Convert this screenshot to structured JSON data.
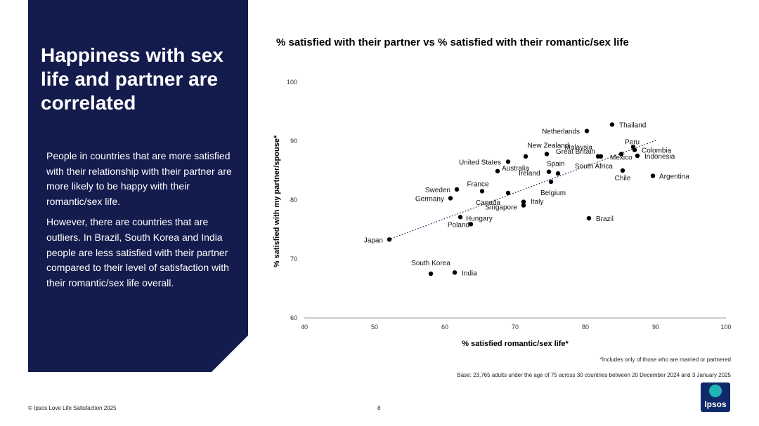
{
  "side": {
    "title": "Happiness with sex life and partner are correlated",
    "paragraph1": "People in countries that are more satisfied with their relationship with their partner are more likely to be happy with their romantic/sex life.",
    "paragraph2": "However, there are countries that are outliers. In Brazil, South Korea and India people are less satisfied with their partner compared to their level of satisfaction with their romantic/sex life overall."
  },
  "footer": {
    "footnote": "*Includes only of those who are married or partnered",
    "base": "Base: 23,765 adults under the age of 75 across 30 countries between 20 December 2024 and 3 January 2025",
    "copyright": "© Ipsos Love Life Satisfaction 2025",
    "page_number": "8",
    "logo_text": "Ipsos"
  },
  "chart_data": {
    "type": "scatter",
    "title": "% satisfied with their partner vs % satisfied with their romantic/sex life",
    "xlabel": "% satisfied romantic/sex life*",
    "ylabel": "% satisfied with my partner/spouse*",
    "xlim": [
      40,
      100
    ],
    "ylim": [
      60,
      100
    ],
    "xticks": [
      "40",
      "50",
      "60",
      "70",
      "80",
      "90",
      "100"
    ],
    "yticks": [
      "60",
      "70",
      "80",
      "90",
      "100"
    ],
    "grid": false,
    "trendline": {
      "style": "dotted",
      "x": [
        52,
        90
      ],
      "y": [
        73.3,
        90.1
      ]
    },
    "points": [
      {
        "label": "Thailand",
        "x": 83.8,
        "y": 92.8
      },
      {
        "label": "Netherlands",
        "x": 80.2,
        "y": 91.7
      },
      {
        "label": "Malaysia",
        "x": 81.8,
        "y": 87.4
      },
      {
        "label": "Great Britain",
        "x": 82.2,
        "y": 87.4
      },
      {
        "label": "New Zealand",
        "x": 74.5,
        "y": 87.8
      },
      {
        "label": "Peru",
        "x": 86.8,
        "y": 89.0
      },
      {
        "label": "Colombia",
        "x": 87.0,
        "y": 88.5
      },
      {
        "label": "Mexico",
        "x": 85.1,
        "y": 87.8
      },
      {
        "label": "Indonesia",
        "x": 87.4,
        "y": 87.5
      },
      {
        "label": "United States",
        "x": 69.0,
        "y": 86.5
      },
      {
        "label": "Ireland",
        "x": 71.5,
        "y": 87.4
      },
      {
        "label": "Australia",
        "x": 67.5,
        "y": 84.9
      },
      {
        "label": "Spain",
        "x": 74.8,
        "y": 84.8
      },
      {
        "label": "South Africa",
        "x": 76.1,
        "y": 84.5
      },
      {
        "label": "Chile",
        "x": 85.3,
        "y": 85.0
      },
      {
        "label": "Argentina",
        "x": 89.6,
        "y": 84.1
      },
      {
        "label": "Belgium",
        "x": 75.1,
        "y": 83.1
      },
      {
        "label": "France",
        "x": 65.3,
        "y": 81.5
      },
      {
        "label": "Sweden",
        "x": 61.7,
        "y": 81.8
      },
      {
        "label": "Canada",
        "x": 69.0,
        "y": 81.2
      },
      {
        "label": "Germany",
        "x": 60.8,
        "y": 80.3
      },
      {
        "label": "Italy",
        "x": 71.2,
        "y": 79.7
      },
      {
        "label": "Singapore",
        "x": 71.2,
        "y": 79.1
      },
      {
        "label": "Hungary",
        "x": 62.2,
        "y": 77.1
      },
      {
        "label": "Poland",
        "x": 63.7,
        "y": 75.9
      },
      {
        "label": "Brazil",
        "x": 80.5,
        "y": 76.9
      },
      {
        "label": "Japan",
        "x": 52.1,
        "y": 73.3
      },
      {
        "label": "South Korea",
        "x": 58.0,
        "y": 67.5
      },
      {
        "label": "India",
        "x": 61.4,
        "y": 67.7
      }
    ]
  }
}
